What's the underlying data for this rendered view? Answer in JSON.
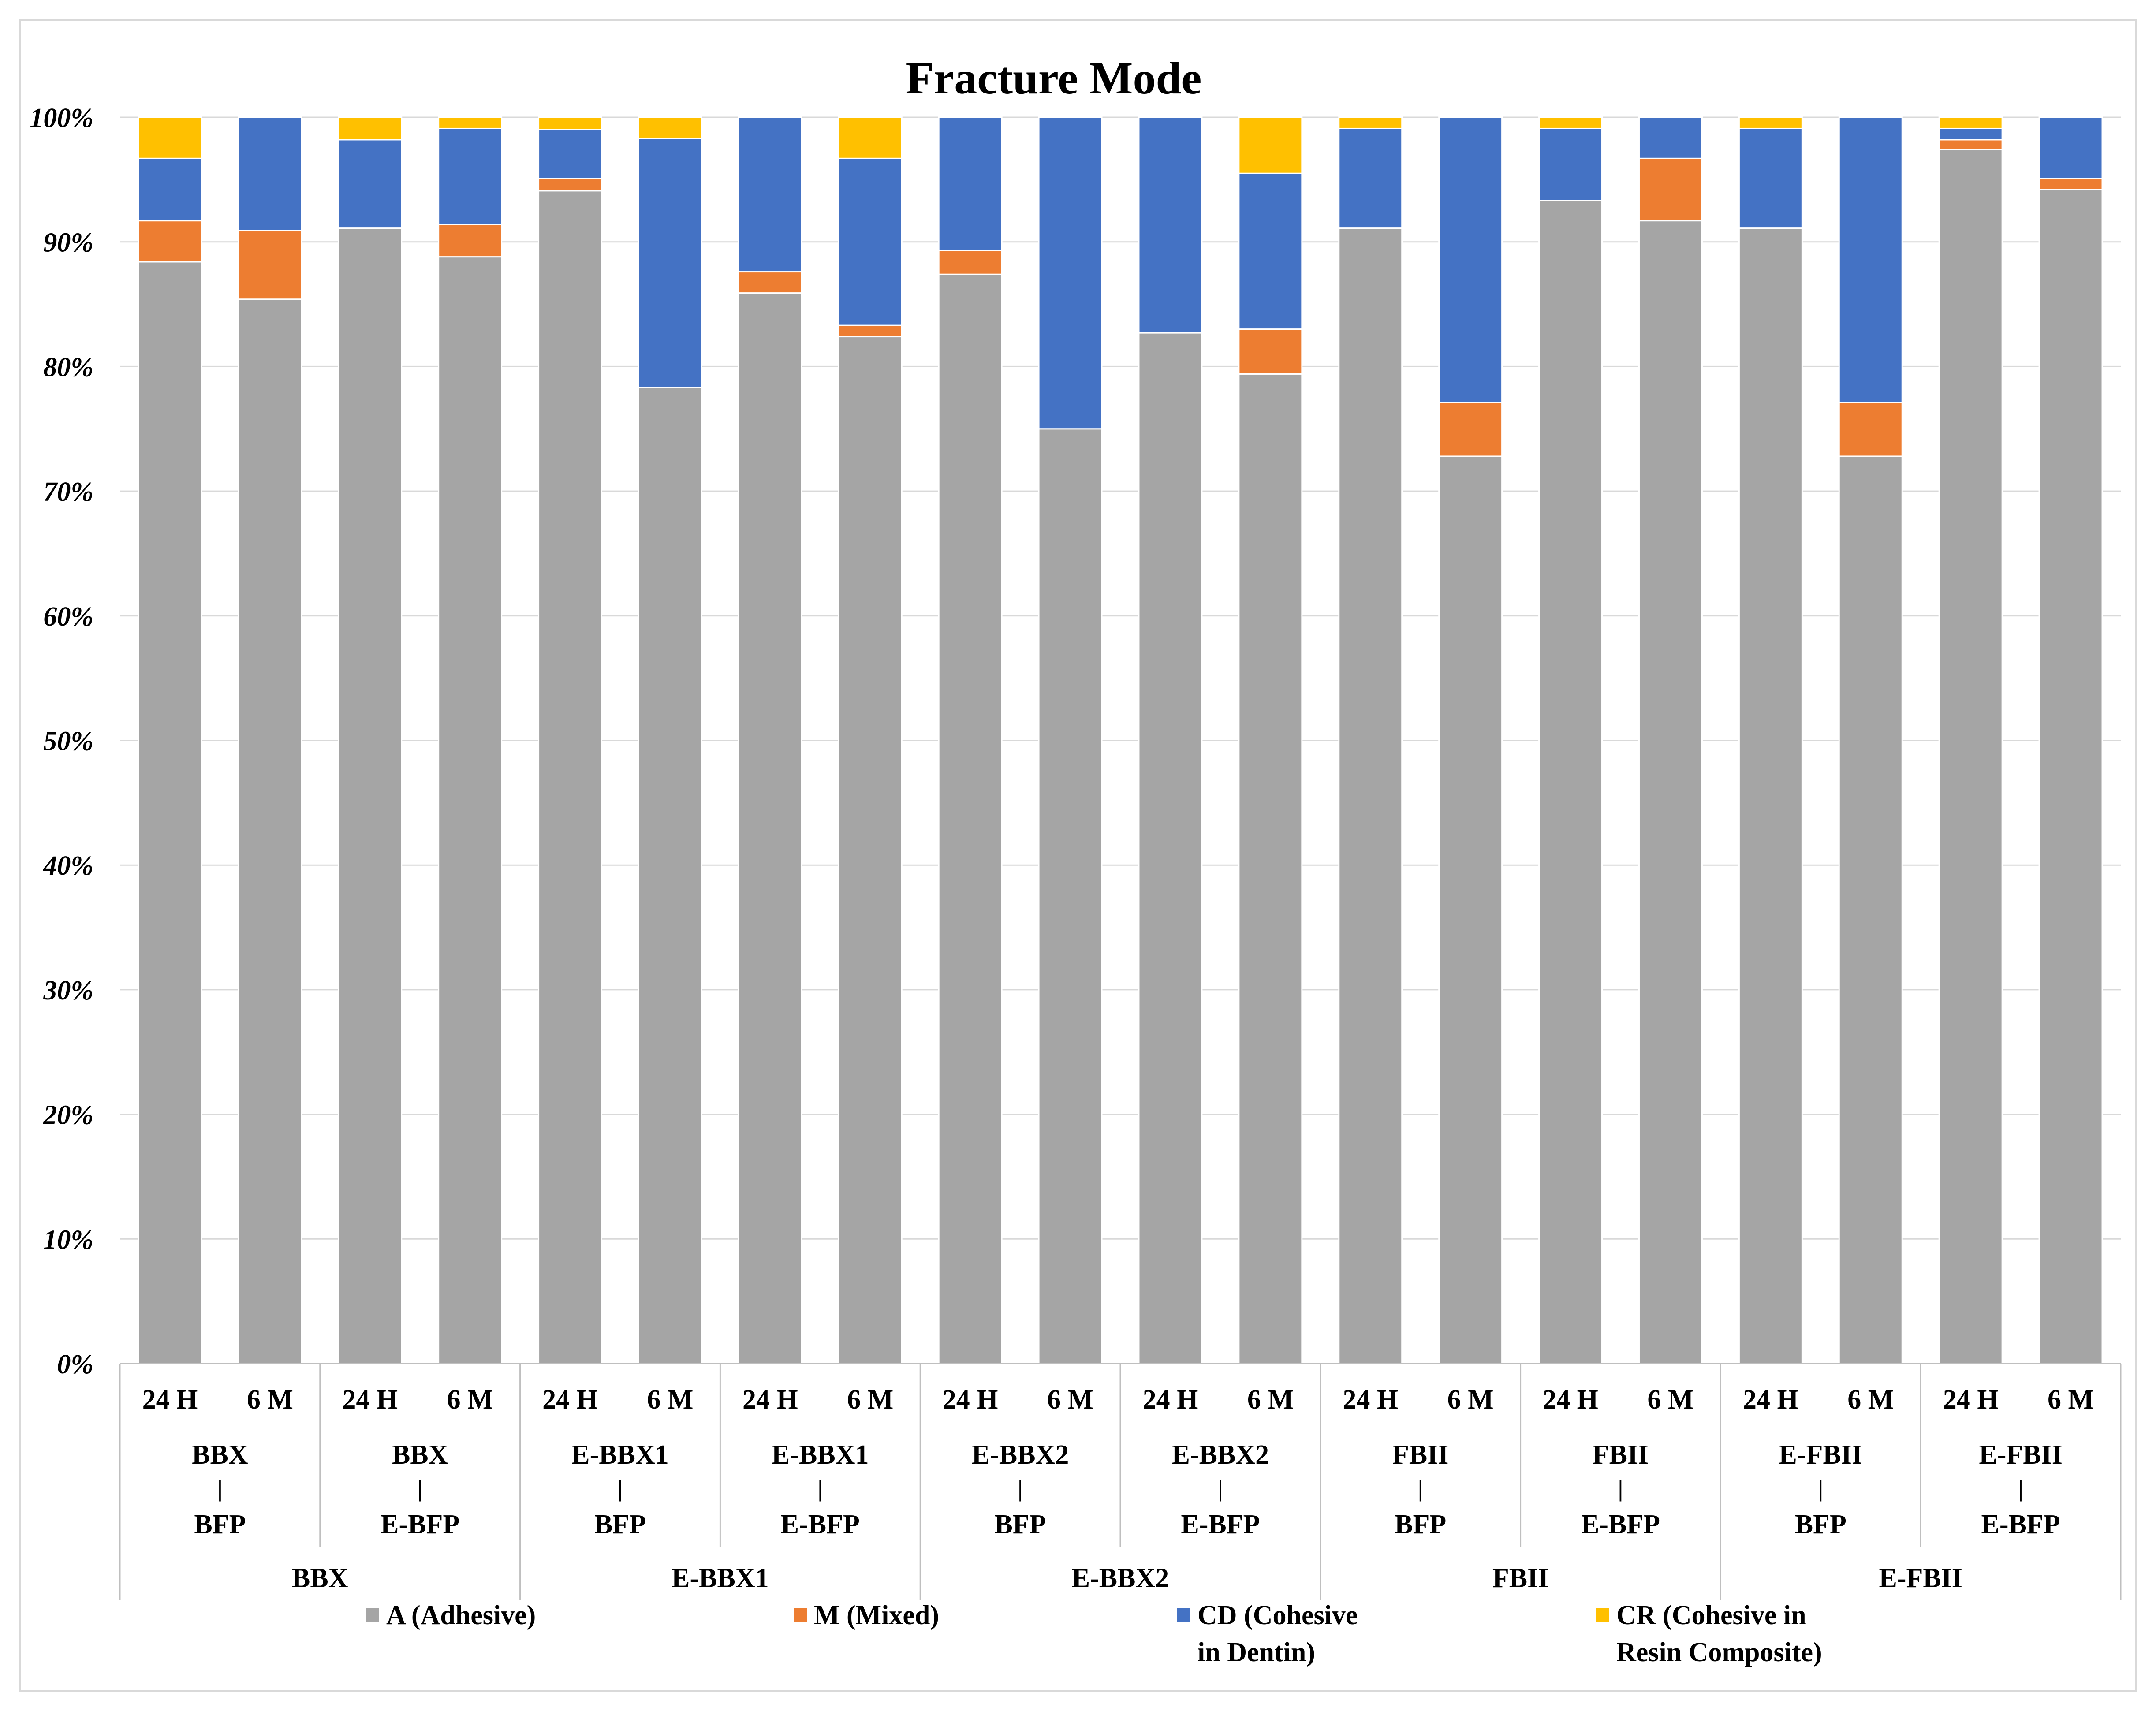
{
  "chart_data": {
    "type": "bar",
    "stacked": true,
    "title": "Fracture Mode",
    "ylim": [
      0,
      100
    ],
    "y_ticks": [
      "0%",
      "10%",
      "20%",
      "30%",
      "40%",
      "50%",
      "60%",
      "70%",
      "80%",
      "90%",
      "100%"
    ],
    "grid": true,
    "legend_position": "bottom",
    "categories": [
      "BBX | BBX | BFP | 24 H",
      "BBX | BBX | BFP | 6 M",
      "BBX | BBX | E-BFP | 24 H",
      "BBX | BBX | E-BFP | 6 M",
      "E-BBX1 | E-BBX1 | BFP | 24 H",
      "E-BBX1 | E-BBX1 | BFP | 6 M",
      "E-BBX1 | E-BBX1 | E-BFP | 24 H",
      "E-BBX1 | E-BBX1 | E-BFP | 6 M",
      "E-BBX2 | E-BBX2 | BFP | 24 H",
      "E-BBX2 | E-BBX2 | BFP | 6 M",
      "E-BBX2 | E-BBX2 | E-BFP | 24 H",
      "E-BBX2 | E-BBX2 | E-BFP | 6 M",
      "FBΙΙ | FBΙΙ | BFP | 24 H",
      "FBΙΙ | FBΙΙ | BFP | 6 M",
      "FBΙΙ | FBΙΙ | E-BFP | 24 H",
      "FBΙΙ | FBΙΙ | E-BFP | 6 M",
      "E-FBΙΙ | E-FBΙΙ | BFP | 24 H",
      "E-FBΙΙ | E-FBΙΙ | BFP | 6 M",
      "E-FBΙΙ | E-FBΙΙ | E-BFP | 24 H",
      "E-FBΙΙ | E-FBΙΙ | E-BFP | 6 M"
    ],
    "time_labels": [
      "24 H",
      "6 M",
      "24 H",
      "6 M",
      "24 H",
      "6 M",
      "24 H",
      "6 M",
      "24 H",
      "6 M",
      "24 H",
      "6 M",
      "24 H",
      "6 M",
      "24 H",
      "6 M",
      "24 H",
      "6 M",
      "24 H",
      "6 M"
    ],
    "subgroups": [
      {
        "top": "BBX",
        "bar": "|",
        "bottom": "BFP"
      },
      {
        "top": "BBX",
        "bar": "|",
        "bottom": "E-BFP"
      },
      {
        "top": "E-BBX1",
        "bar": "|",
        "bottom": "BFP"
      },
      {
        "top": "E-BBX1",
        "bar": "|",
        "bottom": "E-BFP"
      },
      {
        "top": "E-BBX2",
        "bar": "|",
        "bottom": "BFP"
      },
      {
        "top": "E-BBX2",
        "bar": "|",
        "bottom": "E-BFP"
      },
      {
        "top": "FBΙΙ",
        "bar": "|",
        "bottom": "BFP"
      },
      {
        "top": "FBΙΙ",
        "bar": "|",
        "bottom": "E-BFP"
      },
      {
        "top": "E-FBΙΙ",
        "bar": "|",
        "bottom": "BFP"
      },
      {
        "top": "E-FBΙΙ",
        "bar": "|",
        "bottom": "E-BFP"
      }
    ],
    "groups": [
      "BBX",
      "E-BBX1",
      "E-BBX2",
      "FBΙΙ",
      "E-FBΙΙ"
    ],
    "series": [
      {
        "name": "A (Adhesive)",
        "color": "#a5a5a5",
        "values": [
          88.4,
          85.4,
          91.1,
          88.8,
          94.1,
          78.3,
          85.9,
          82.4,
          87.4,
          75.0,
          82.7,
          79.4,
          91.1,
          72.8,
          93.3,
          91.7,
          91.1,
          72.8,
          97.4,
          94.2
        ]
      },
      {
        "name": "M (Mixed)",
        "color": "#ed7d31",
        "values": [
          3.3,
          5.5,
          0.0,
          2.6,
          1.0,
          0.0,
          1.7,
          0.9,
          1.9,
          0.0,
          0.0,
          3.6,
          0.0,
          4.3,
          0.0,
          5.0,
          0.0,
          4.3,
          0.8,
          0.9
        ]
      },
      {
        "name": "CD (Cohesive in Dentin)",
        "color": "#4472c4",
        "values": [
          5.0,
          9.1,
          7.1,
          7.7,
          3.9,
          20.0,
          12.4,
          13.4,
          10.7,
          25.0,
          17.3,
          12.5,
          8.0,
          22.9,
          5.8,
          3.3,
          8.0,
          22.9,
          0.9,
          4.9
        ]
      },
      {
        "name": "CR (Cohesive in Resin Composite)",
        "color": "#ffc000",
        "values": [
          3.3,
          0.0,
          1.8,
          0.9,
          1.0,
          1.7,
          0.0,
          3.3,
          0.0,
          0.0,
          0.0,
          4.5,
          0.9,
          0.0,
          0.9,
          0.0,
          0.9,
          0.0,
          0.9,
          0.0
        ]
      }
    ],
    "legend": [
      {
        "line1": "A (Adhesive)",
        "line2": ""
      },
      {
        "line1": "M (Mixed)",
        "line2": ""
      },
      {
        "line1": "CD (Cohesive",
        "line2": "in Dentin)"
      },
      {
        "line1": "CR (Cohesive in",
        "line2": "Resin Composite)"
      }
    ]
  }
}
